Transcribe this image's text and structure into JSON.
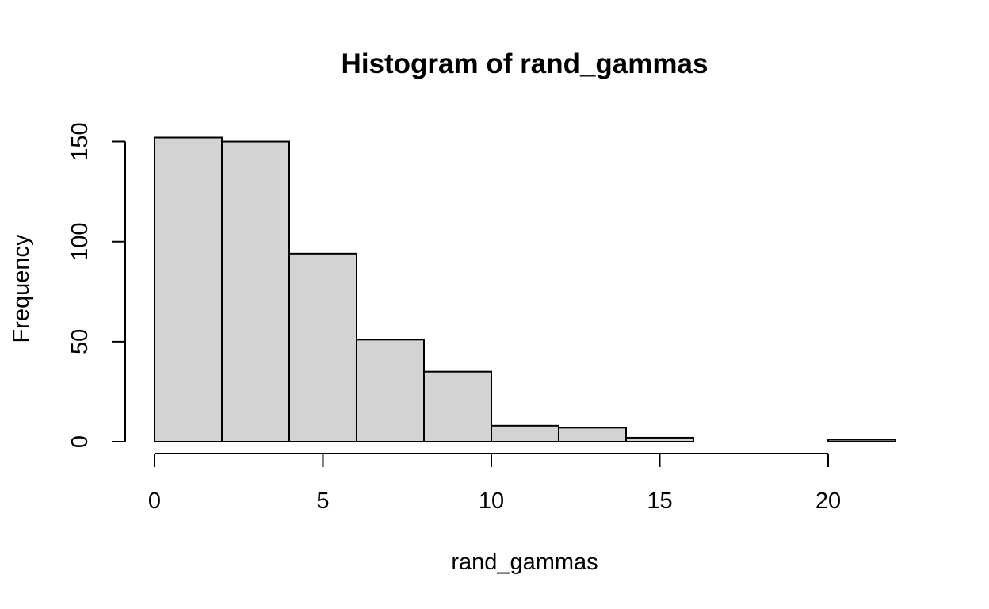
{
  "chart_data": {
    "type": "bar",
    "title": "Histogram of rand_gammas",
    "xlabel": "rand_gammas",
    "ylabel": "Frequency",
    "bins": [
      {
        "x0": 0,
        "x1": 2,
        "count": 152
      },
      {
        "x0": 2,
        "x1": 4,
        "count": 150
      },
      {
        "x0": 4,
        "x1": 6,
        "count": 94
      },
      {
        "x0": 6,
        "x1": 8,
        "count": 51
      },
      {
        "x0": 8,
        "x1": 10,
        "count": 35
      },
      {
        "x0": 10,
        "x1": 12,
        "count": 8
      },
      {
        "x0": 12,
        "x1": 14,
        "count": 7
      },
      {
        "x0": 14,
        "x1": 16,
        "count": 2
      },
      {
        "x0": 16,
        "x1": 18,
        "count": 0
      },
      {
        "x0": 18,
        "x1": 20,
        "count": 0
      },
      {
        "x0": 20,
        "x1": 22,
        "count": 1
      }
    ],
    "xticks": [
      0,
      5,
      10,
      15,
      20
    ],
    "yticks": [
      0,
      50,
      100,
      150
    ],
    "xlim": [
      0,
      20
    ],
    "ylim": [
      0,
      150
    ],
    "bar_color": "#d3d3d3",
    "grid": false,
    "legend": false
  }
}
